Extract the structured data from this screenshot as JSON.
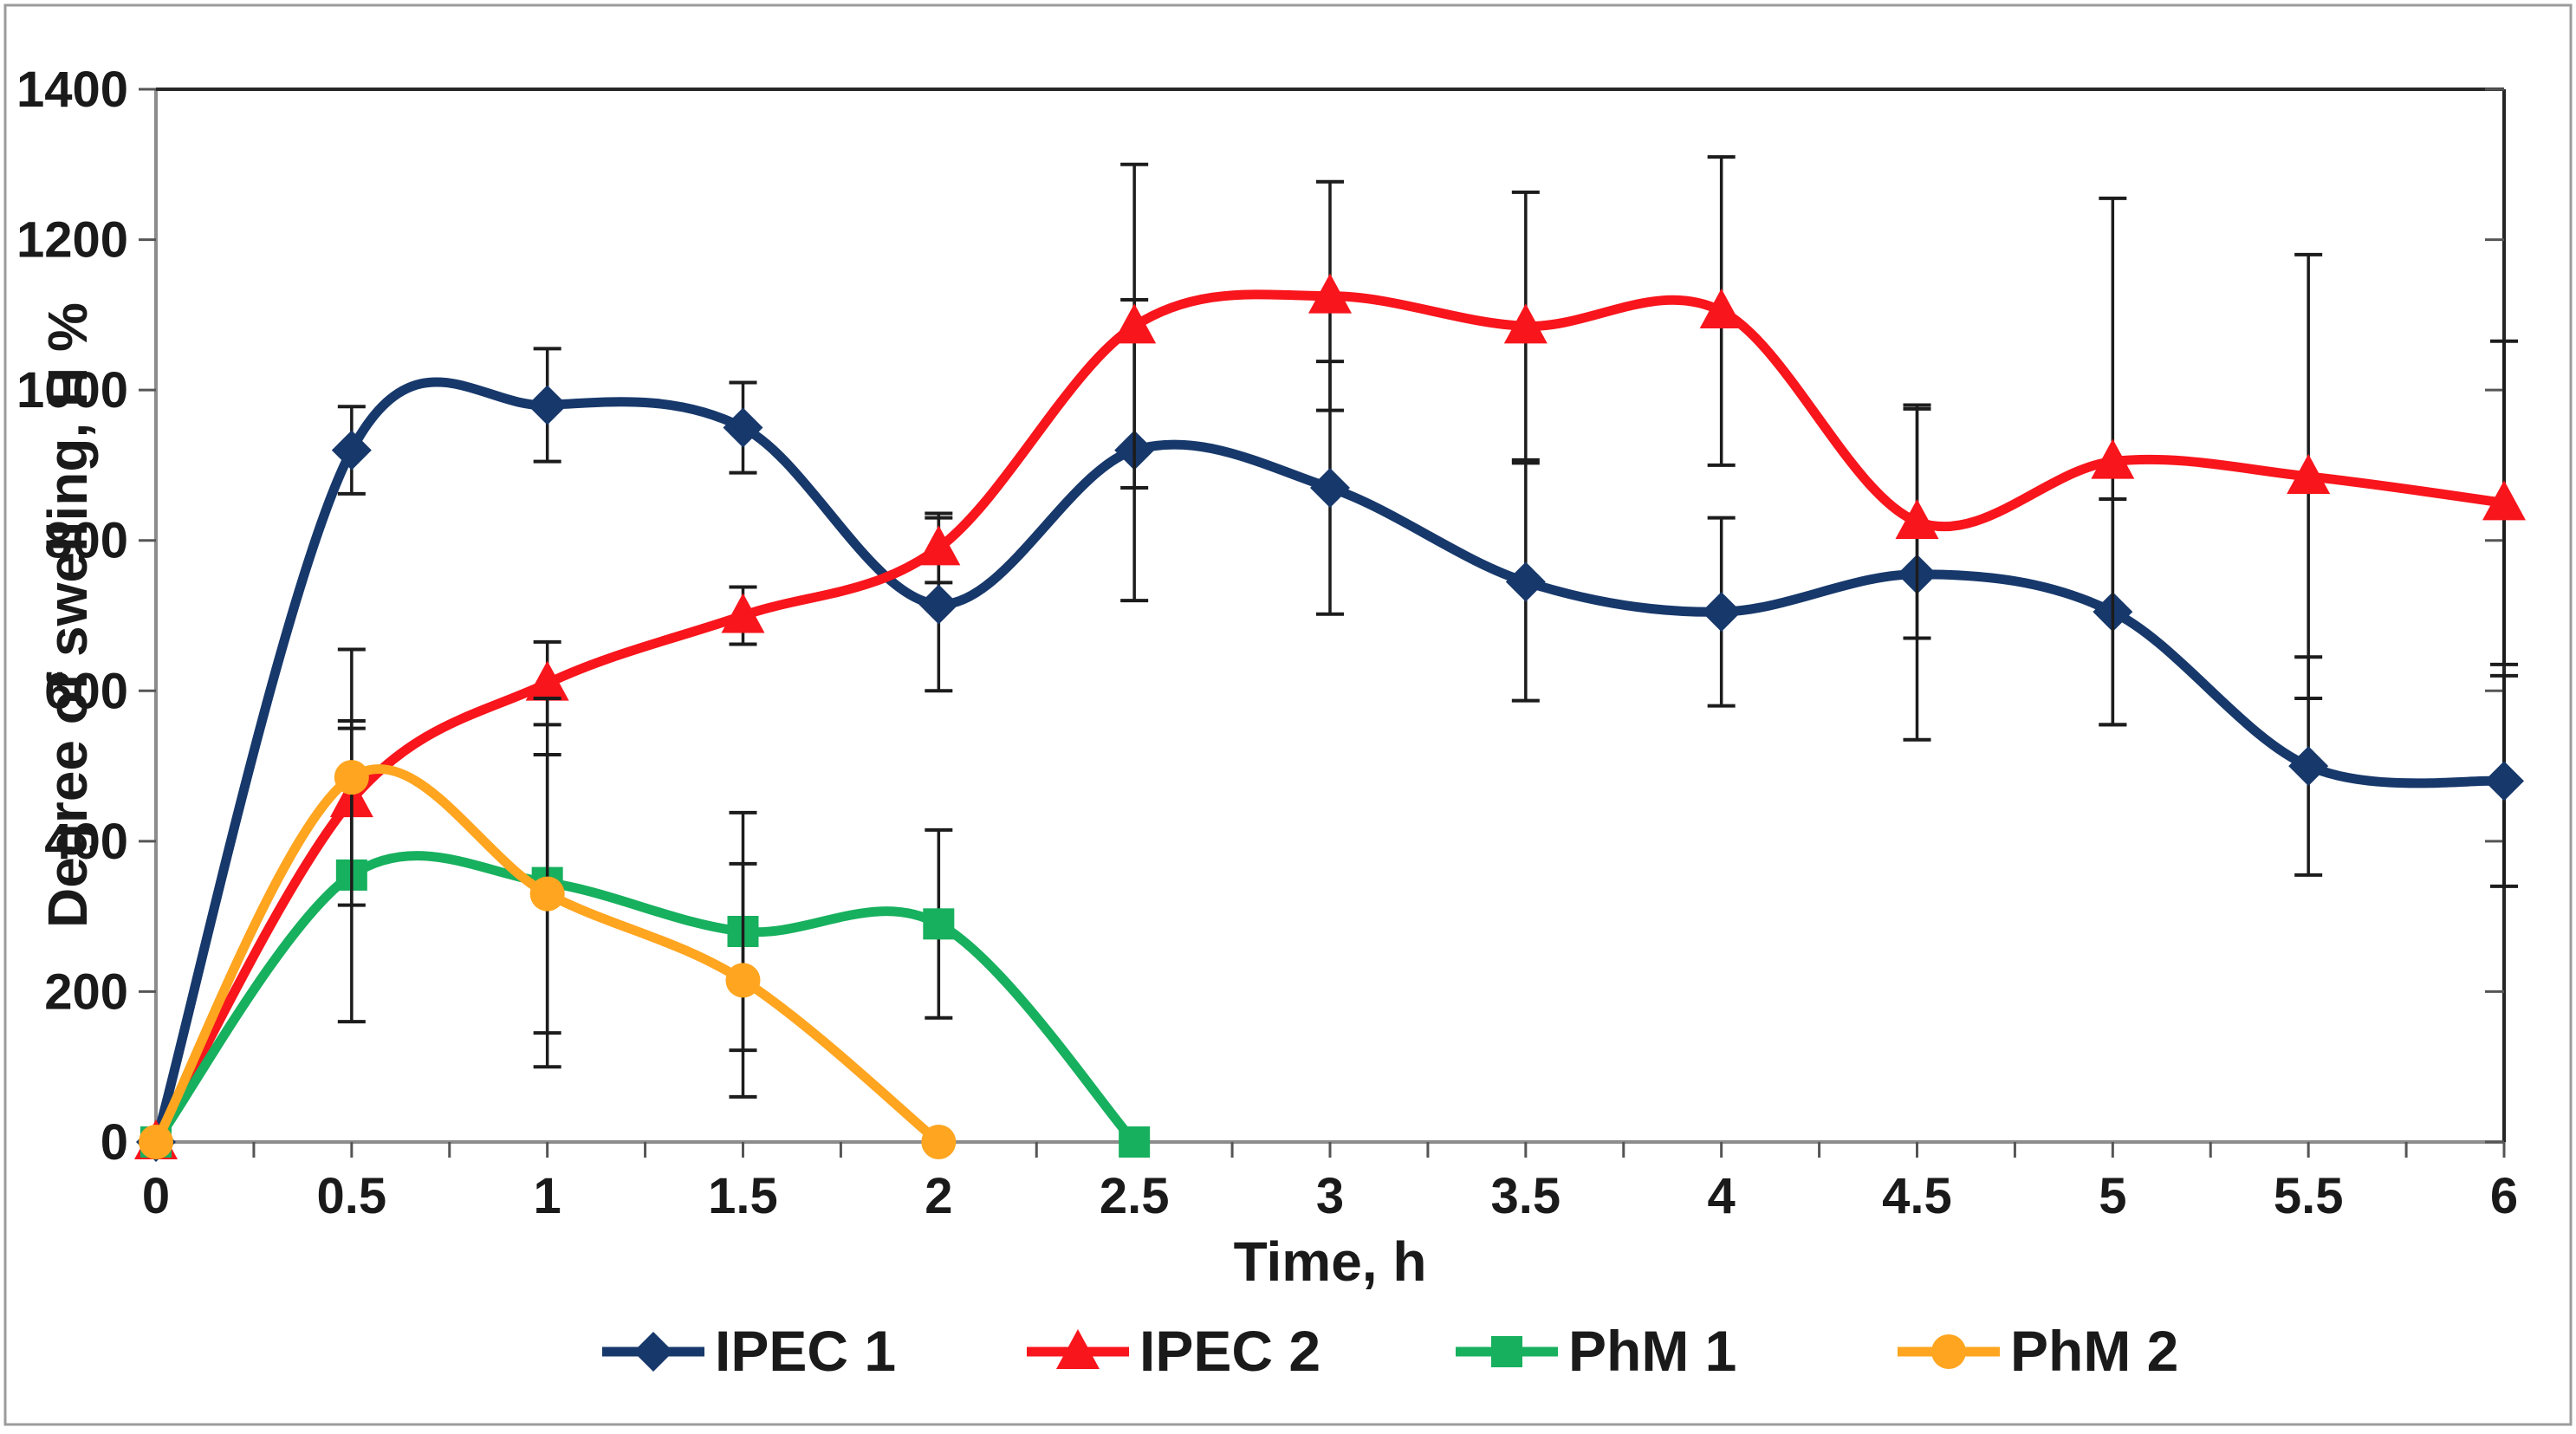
{
  "figure": {
    "border_color": "#9b9b9b",
    "background": "#ffffff",
    "axis_line_color_left_bottom": "#8c8c8c",
    "axis_line_color_top_right": "#262626",
    "error_bar_color": "#1c1c1c"
  },
  "chart_data": {
    "type": "line",
    "title": "",
    "xlabel": "Time, h",
    "ylabel": "Degree of swelling, H %",
    "xlim": [
      0,
      6
    ],
    "ylim": [
      0,
      1400
    ],
    "x_ticks": [
      0,
      0.25,
      0.5,
      0.75,
      1,
      1.25,
      1.5,
      1.75,
      2,
      2.25,
      2.5,
      2.75,
      3,
      3.25,
      3.5,
      3.75,
      4,
      4.25,
      4.5,
      4.75,
      5,
      5.25,
      5.5,
      5.75,
      6
    ],
    "x_tick_labels": [
      "0",
      "0.5",
      "1",
      "1.5",
      "2",
      "2.5",
      "3",
      "3.5",
      "4",
      "4.5",
      "5",
      "5.5",
      "6"
    ],
    "x_tick_label_values": [
      0,
      0.5,
      1,
      1.5,
      2,
      2.5,
      3,
      3.5,
      4,
      4.5,
      5,
      5.5,
      6
    ],
    "y_ticks": [
      0,
      200,
      400,
      600,
      800,
      1000,
      1200,
      1400
    ],
    "y_tick_labels": [
      "0",
      "200",
      "400",
      "600",
      "800",
      "1000",
      "1200",
      "1400"
    ],
    "grid": false,
    "legend_position": "bottom",
    "smooth_lines": true,
    "error_bars": true,
    "series": [
      {
        "name": "IPEC 1",
        "color": "#17386b",
        "marker": "diamond",
        "x": [
          0,
          0.5,
          1,
          1.5,
          2,
          2.5,
          3,
          3.5,
          4,
          4.5,
          5,
          5.5,
          6
        ],
        "y": [
          0,
          920,
          980,
          950,
          715,
          920,
          870,
          745,
          705,
          755,
          705,
          500,
          480
        ],
        "err": [
          0,
          58,
          75,
          60,
          115,
          200,
          168,
          158,
          125,
          220,
          150,
          145,
          140
        ]
      },
      {
        "name": "IPEC 2",
        "color": "#f8151c",
        "marker": "triangle",
        "x": [
          0,
          0.5,
          1,
          1.5,
          2,
          2.5,
          3,
          3.5,
          4,
          4.5,
          5,
          5.5,
          6
        ],
        "y": [
          0,
          455,
          610,
          700,
          790,
          1085,
          1125,
          1085,
          1105,
          825,
          905,
          885,
          850
        ],
        "err": [
          0,
          105,
          55,
          38,
          46,
          215,
          152,
          178,
          205,
          155,
          350,
          295,
          215
        ]
      },
      {
        "name": "PhM 1",
        "color": "#17b05e",
        "marker": "square",
        "x": [
          0,
          0.5,
          1,
          1.5,
          2,
          2.5
        ],
        "y": [
          0,
          355,
          345,
          280,
          290,
          0
        ],
        "err": [
          0,
          195,
          245,
          158,
          125,
          0
        ]
      },
      {
        "name": "PhM 2",
        "color": "#ffa51f",
        "marker": "circle",
        "x": [
          0,
          0.5,
          1,
          1.5,
          2
        ],
        "y": [
          0,
          485,
          330,
          215,
          0
        ],
        "err": [
          0,
          170,
          185,
          155,
          0
        ]
      }
    ]
  }
}
